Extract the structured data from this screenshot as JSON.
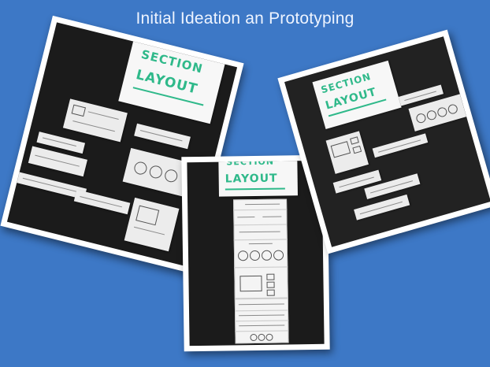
{
  "slide": {
    "title": "Initial Ideation an Prototyping"
  },
  "photos": {
    "left": {
      "heading_line1": "SECTION",
      "heading_line2": "LAYOUT"
    },
    "center": {
      "heading_line1": "SECTION",
      "heading_line2": "LAYOUT"
    },
    "right": {
      "heading_line1": "SECTION",
      "heading_line2": "LAYOUT"
    }
  },
  "colors": {
    "background": "#3d78c6",
    "marker": "#2fb98a",
    "board": "#1b1b1b"
  }
}
